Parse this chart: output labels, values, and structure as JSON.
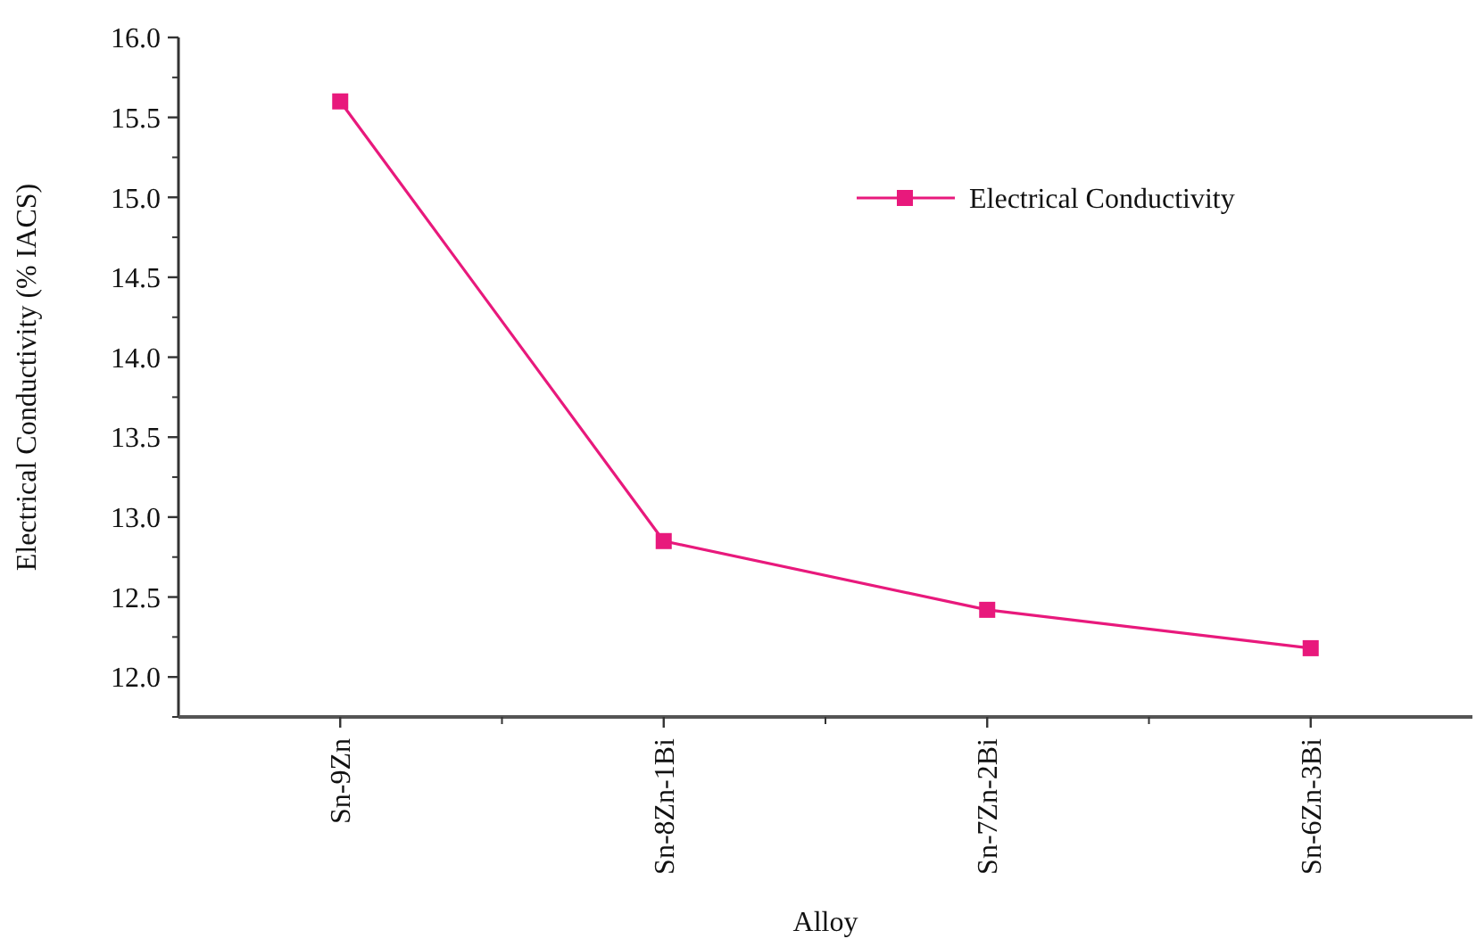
{
  "chart_data": {
    "type": "line",
    "xlabel": "Alloy",
    "ylabel": "Electrical Conductivity (% IACS)",
    "categories": [
      "Sn-9Zn",
      "Sn-8Zn-1Bi",
      "Sn-7Zn-2Bi",
      "Sn-6Zn-3Bi"
    ],
    "series": [
      {
        "name": "Electrical Conductivity",
        "color": "#e8197c",
        "values": [
          15.6,
          12.85,
          12.42,
          12.18
        ]
      }
    ],
    "ylim": [
      11.75,
      16.0
    ],
    "yticks": [
      {
        "value": 12,
        "label": "12.0"
      },
      {
        "value": 12.5,
        "label": "12.5"
      },
      {
        "value": 13,
        "label": "13.0"
      },
      {
        "value": 13.5,
        "label": "13.5"
      },
      {
        "value": 14,
        "label": "14.0"
      },
      {
        "value": 14.5,
        "label": "14.5"
      },
      {
        "value": 15,
        "label": "15.0"
      },
      {
        "value": 15.5,
        "label": "15.5"
      },
      {
        "value": 16,
        "label": "16.0"
      }
    ],
    "marker": "square",
    "line_style": "solid",
    "legend": "top right",
    "grid": false
  }
}
